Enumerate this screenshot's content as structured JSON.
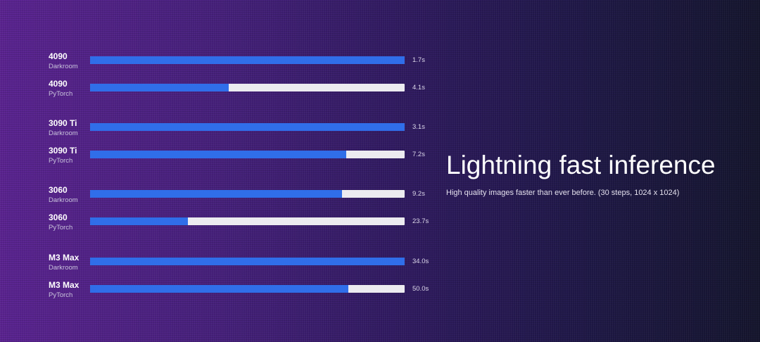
{
  "hero": {
    "title": "Lightning fast inference",
    "subtitle": "High quality images faster than ever before. (30 steps, 1024 x 1024)"
  },
  "colors": {
    "bar_fill": "#2f6ee8",
    "bar_track": "#ececf0",
    "background_left": "#5a2390",
    "background_right": "#15152e"
  },
  "chart_data": {
    "type": "bar",
    "orientation": "horizontal",
    "xlim": [
      0,
      1
    ],
    "rows": [
      {
        "gpu": "4090",
        "framework": "Darkroom",
        "value_label": "1.7s",
        "fill_fraction": 1.0
      },
      {
        "gpu": "4090",
        "framework": "PyTorch",
        "value_label": "4.1s",
        "fill_fraction": 0.44
      },
      {
        "gpu": "3090 Ti",
        "framework": "Darkroom",
        "value_label": "3.1s",
        "fill_fraction": 1.0
      },
      {
        "gpu": "3090 Ti",
        "framework": "PyTorch",
        "value_label": "7.2s",
        "fill_fraction": 0.815
      },
      {
        "gpu": "3060",
        "framework": "Darkroom",
        "value_label": "9.2s",
        "fill_fraction": 0.8
      },
      {
        "gpu": "3060",
        "framework": "PyTorch",
        "value_label": "23.7s",
        "fill_fraction": 0.31
      },
      {
        "gpu": "M3 Max",
        "framework": "Darkroom",
        "value_label": "34.0s",
        "fill_fraction": 1.0
      },
      {
        "gpu": "M3 Max",
        "framework": "PyTorch",
        "value_label": "50.0s",
        "fill_fraction": 0.82
      }
    ]
  }
}
